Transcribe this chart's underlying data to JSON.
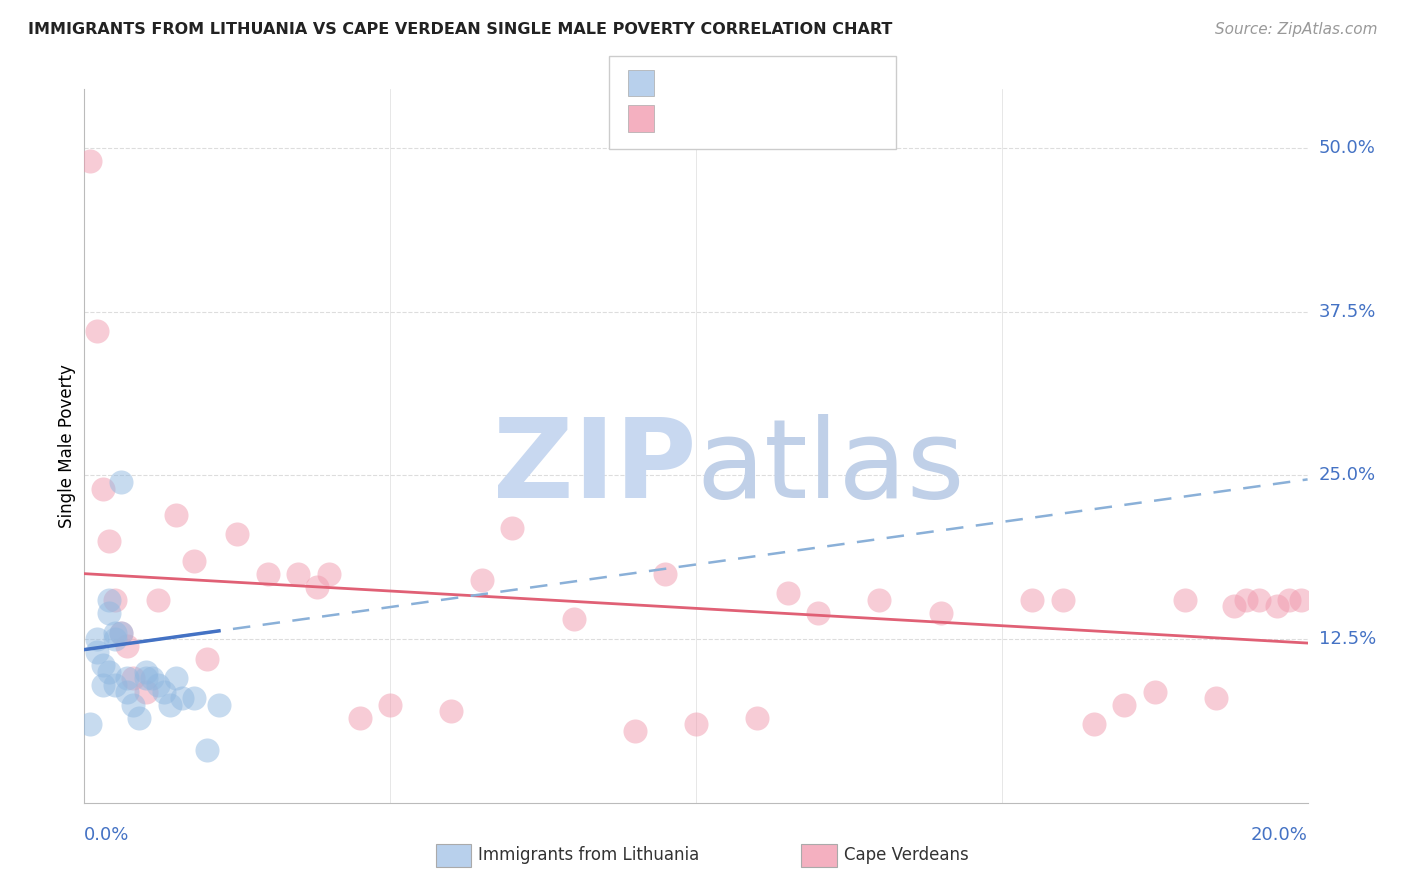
{
  "title": "IMMIGRANTS FROM LITHUANIA VS CAPE VERDEAN SINGLE MALE POVERTY CORRELATION CHART",
  "source": "Source: ZipAtlas.com",
  "ylabel": "Single Male Poverty",
  "ytick_labels": [
    "50.0%",
    "37.5%",
    "25.0%",
    "12.5%"
  ],
  "ytick_values": [
    0.5,
    0.375,
    0.25,
    0.125
  ],
  "xtick_labels": [
    "0.0%",
    "20.0%"
  ],
  "xmin": 0.0,
  "xmax": 0.2,
  "ymin": 0.0,
  "ymax": 0.545,
  "background_color": "#ffffff",
  "grid_color": "#dddddd",
  "blue_scatter_color": "#90b8e0",
  "pink_scatter_color": "#f09aae",
  "blue_line_color": "#4472c4",
  "pink_line_color": "#e06075",
  "blue_dashed_color": "#8ab0d8",
  "legend_color1": "#b8d0ec",
  "legend_color2": "#f4b0c0",
  "watermark_zip_color": "#c8d8f0",
  "watermark_atlas_color": "#c0d0e8",
  "lit_points_x": [
    0.001,
    0.002,
    0.002,
    0.003,
    0.003,
    0.004,
    0.004,
    0.004,
    0.005,
    0.005,
    0.005,
    0.006,
    0.006,
    0.007,
    0.007,
    0.008,
    0.009,
    0.01,
    0.01,
    0.011,
    0.012,
    0.013,
    0.014,
    0.015,
    0.016,
    0.018,
    0.02,
    0.022
  ],
  "lit_points_y": [
    0.06,
    0.115,
    0.125,
    0.09,
    0.105,
    0.145,
    0.155,
    0.1,
    0.125,
    0.13,
    0.09,
    0.245,
    0.13,
    0.085,
    0.095,
    0.075,
    0.065,
    0.1,
    0.095,
    0.095,
    0.09,
    0.085,
    0.075,
    0.095,
    0.08,
    0.08,
    0.04,
    0.075
  ],
  "cv_points_x": [
    0.001,
    0.002,
    0.003,
    0.004,
    0.005,
    0.006,
    0.007,
    0.008,
    0.01,
    0.012,
    0.015,
    0.018,
    0.02,
    0.025,
    0.03,
    0.035,
    0.038,
    0.04,
    0.045,
    0.05,
    0.06,
    0.065,
    0.07,
    0.08,
    0.09,
    0.095,
    0.1,
    0.11,
    0.115,
    0.12,
    0.13,
    0.14,
    0.155,
    0.16,
    0.165,
    0.17,
    0.175,
    0.18,
    0.185,
    0.188,
    0.19,
    0.192,
    0.195,
    0.197,
    0.199
  ],
  "cv_points_y": [
    0.49,
    0.36,
    0.24,
    0.2,
    0.155,
    0.13,
    0.12,
    0.095,
    0.085,
    0.155,
    0.22,
    0.185,
    0.11,
    0.205,
    0.175,
    0.175,
    0.165,
    0.175,
    0.065,
    0.075,
    0.07,
    0.17,
    0.21,
    0.14,
    0.055,
    0.175,
    0.06,
    0.065,
    0.16,
    0.145,
    0.155,
    0.145,
    0.155,
    0.155,
    0.06,
    0.075,
    0.085,
    0.155,
    0.08,
    0.15,
    0.155,
    0.155,
    0.15,
    0.155,
    0.155
  ],
  "lit_trend_x": [
    0.0,
    0.2
  ],
  "lit_trend_y": [
    0.117,
    0.247
  ],
  "cv_trend_x": [
    0.0,
    0.2
  ],
  "cv_trend_y": [
    0.175,
    0.122
  ]
}
